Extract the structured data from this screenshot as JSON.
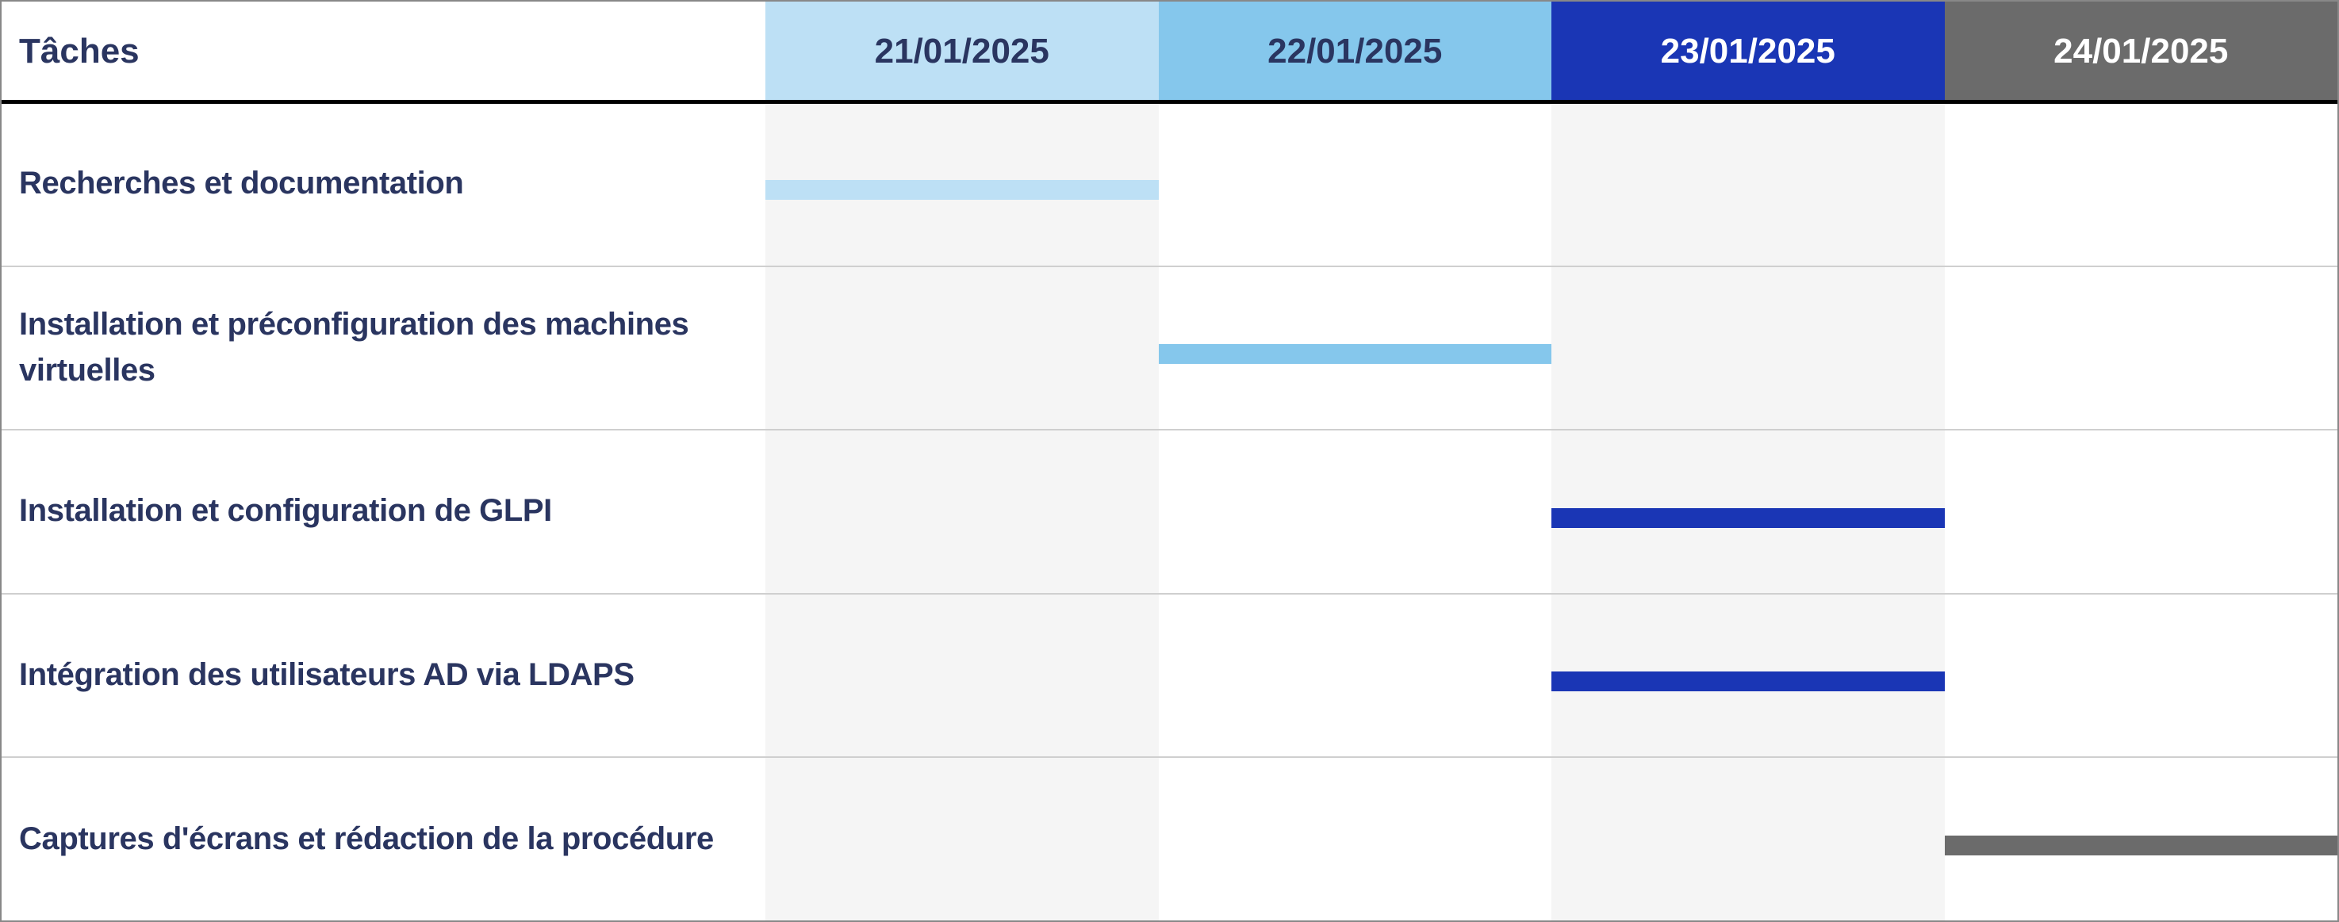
{
  "chart_data": {
    "type": "gantt",
    "task_header": "Tâches",
    "dates": [
      {
        "label": "21/01/2025",
        "color": "#bde0f5",
        "text_color": "#2a3560"
      },
      {
        "label": "22/01/2025",
        "color": "#85c7ec",
        "text_color": "#2a3560"
      },
      {
        "label": "23/01/2025",
        "color": "#1a36b5",
        "text_color": "#ffffff"
      },
      {
        "label": "24/01/2025",
        "color": "#6b6b6b",
        "text_color": "#ffffff"
      }
    ],
    "tasks": [
      {
        "name": "Recherches et documentation",
        "date": "21/01/2025"
      },
      {
        "name": "Installation et préconfiguration des machines virtuelles",
        "date": "22/01/2025"
      },
      {
        "name": "Installation et configuration de GLPI",
        "date": "23/01/2025"
      },
      {
        "name": "Intégration des utilisateurs AD via LDAPS",
        "date": "23/01/2025"
      },
      {
        "name": "Captures d'écrans et rédaction de la procédure",
        "date": "24/01/2025"
      }
    ]
  }
}
